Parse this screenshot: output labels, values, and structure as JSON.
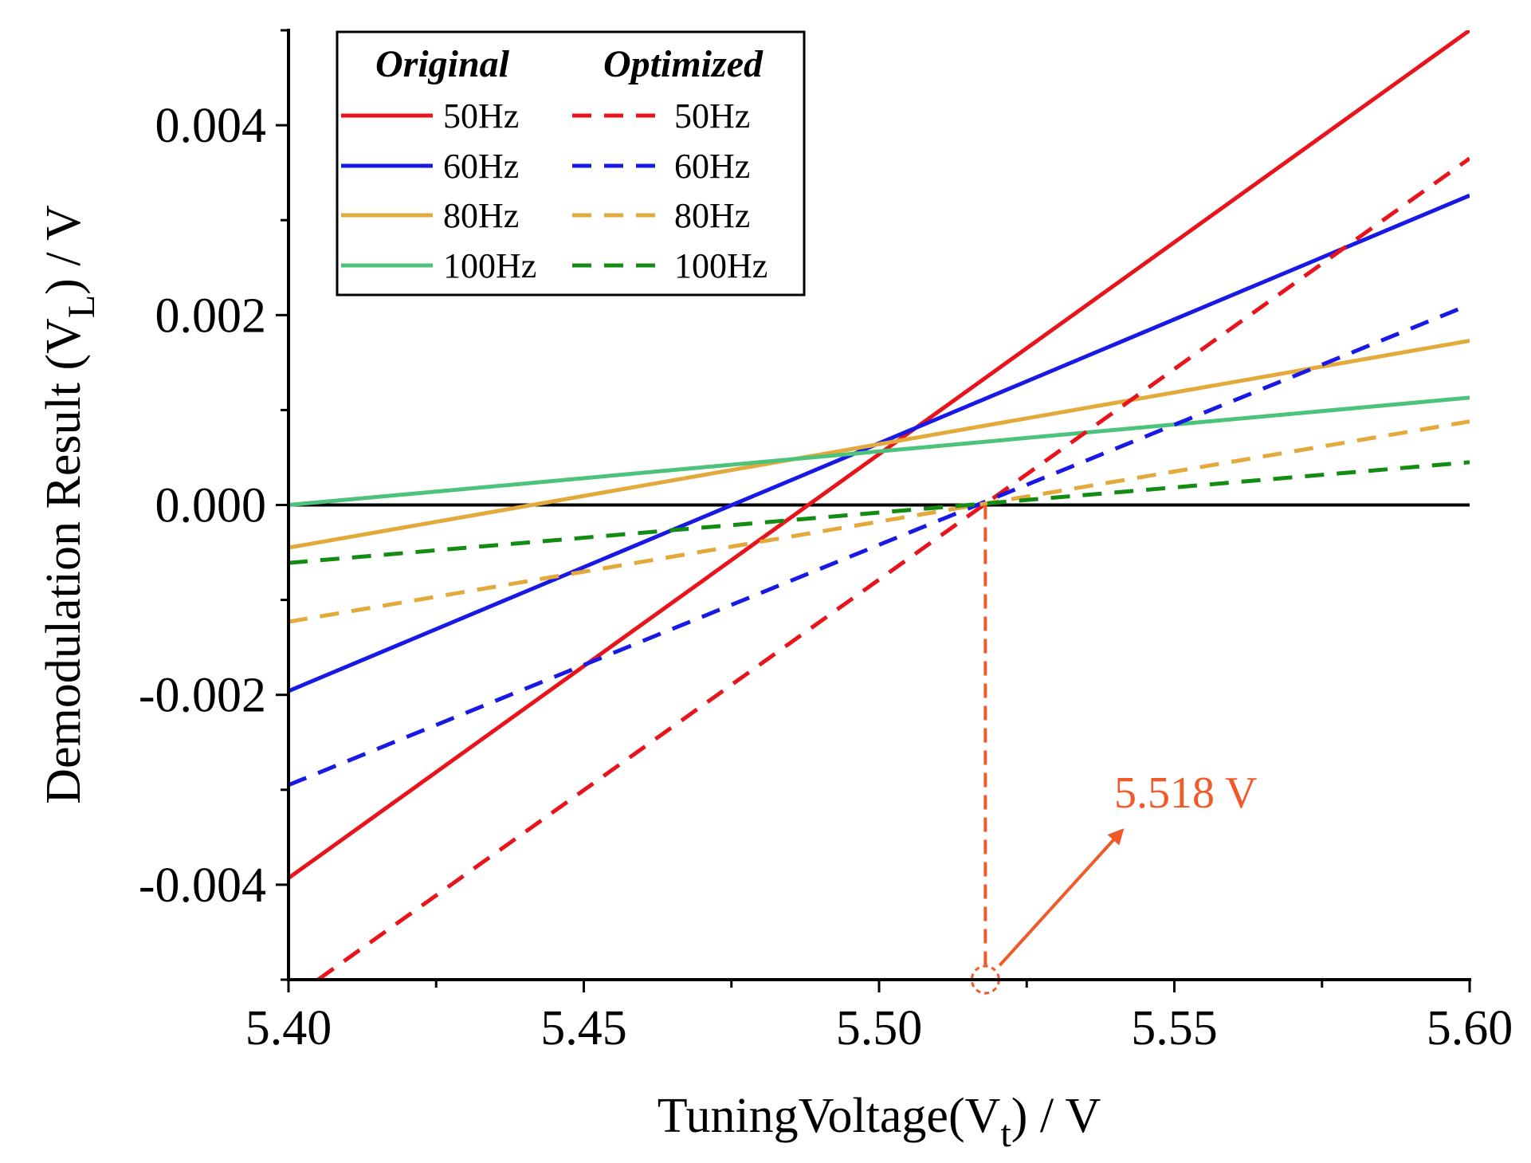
{
  "chart_data": {
    "type": "line",
    "xlabel": "TuningVoltage(V",
    "xlabel_sub": "t",
    "xlabel_suffix": ") / V",
    "ylabel": "Demodulation Result (V",
    "ylabel_sub": "L",
    "ylabel_suffix": ") / V",
    "xlim": [
      5.4,
      5.6
    ],
    "ylim": [
      -0.005,
      0.005
    ],
    "xticks": [
      5.4,
      5.45,
      5.5,
      5.55,
      5.6
    ],
    "xtick_labels": [
      "5.40",
      "5.45",
      "5.50",
      "5.55",
      "5.60"
    ],
    "yticks": [
      -0.004,
      -0.002,
      0.0,
      0.002,
      0.004
    ],
    "ytick_labels": [
      "-0.004",
      "-0.002",
      "0.000",
      "0.002",
      "0.004"
    ],
    "legend": {
      "position": "top-left",
      "header_left": "Original",
      "header_right": "Optimized"
    },
    "series": [
      {
        "name": "50Hz",
        "group": "Original",
        "style": "solid",
        "color": "#e8141b",
        "x": [
          5.4,
          5.6
        ],
        "y": [
          -0.00393,
          0.005
        ]
      },
      {
        "name": "60Hz",
        "group": "Original",
        "style": "solid",
        "color": "#1919e6",
        "x": [
          5.4,
          5.6
        ],
        "y": [
          -0.00196,
          0.00326
        ]
      },
      {
        "name": "80Hz",
        "group": "Original",
        "style": "solid",
        "color": "#e3a93a",
        "x": [
          5.4,
          5.6
        ],
        "y": [
          -0.00045,
          0.00173
        ]
      },
      {
        "name": "100Hz",
        "group": "Original",
        "style": "solid",
        "color": "#4cc27a",
        "x": [
          5.4,
          5.6
        ],
        "y": [
          0.0,
          0.00113
        ]
      },
      {
        "name": "50Hz",
        "group": "Optimized",
        "style": "dashed",
        "color": "#e8141b",
        "x": [
          5.405,
          5.6
        ],
        "y": [
          -0.005,
          0.00365
        ]
      },
      {
        "name": "60Hz",
        "group": "Optimized",
        "style": "dashed",
        "color": "#1919e6",
        "x": [
          5.4,
          5.6
        ],
        "y": [
          -0.00295,
          0.00211
        ]
      },
      {
        "name": "80Hz",
        "group": "Optimized",
        "style": "dashed",
        "color": "#e3a93a",
        "x": [
          5.4,
          5.6
        ],
        "y": [
          -0.00123,
          0.00088
        ]
      },
      {
        "name": "100Hz",
        "group": "Optimized",
        "style": "dashed",
        "color": "#138c13",
        "x": [
          5.4,
          5.6
        ],
        "y": [
          -0.00061,
          0.00045
        ]
      }
    ],
    "zero_line": {
      "y": 0.0,
      "color": "#000000"
    },
    "annotation": {
      "text": "5.518 V",
      "x": 5.518,
      "color": "#f05a28",
      "marker": "dashed-circle"
    }
  }
}
